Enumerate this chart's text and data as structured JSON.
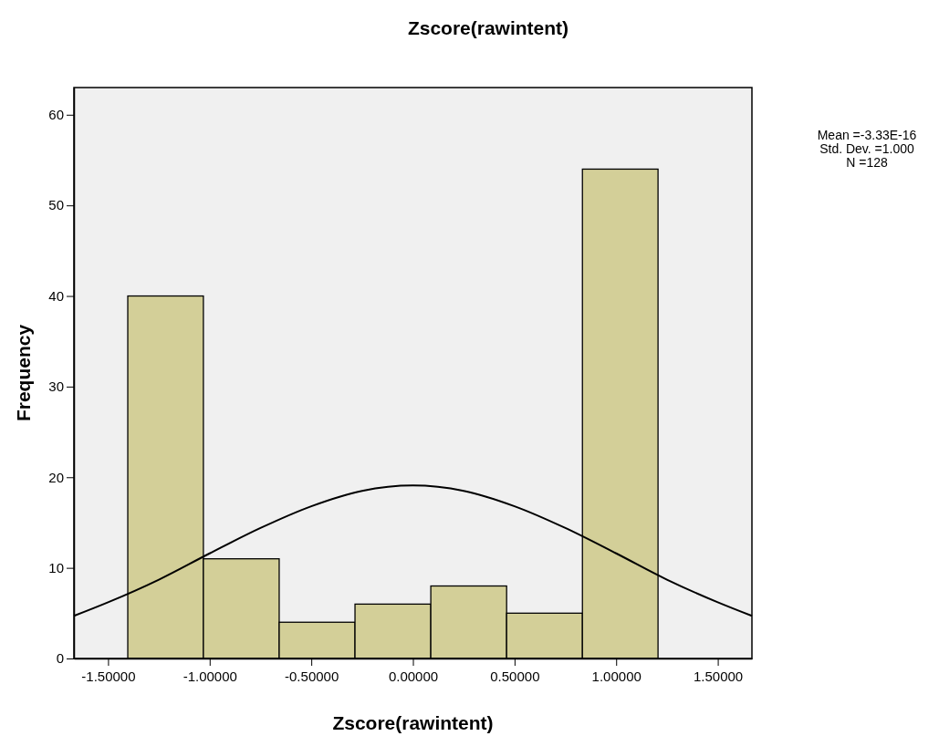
{
  "chart_data": {
    "type": "histogram",
    "title": "Zscore(rawintent)",
    "xlabel": "Zscore(rawintent)",
    "ylabel": "Frequency",
    "bins": [
      -1.403,
      -1.031,
      -0.658,
      -0.285,
      0.088,
      0.461,
      0.834,
      1.206
    ],
    "values": [
      40,
      11,
      4,
      6,
      8,
      5,
      54
    ],
    "color": "#d3cf98",
    "series": [
      {
        "type": "line",
        "color": "#000000",
        "x": [
          -1.668,
          -1.5,
          -1.25,
          -1.0,
          -0.75,
          -0.5,
          -0.25,
          0,
          0.25,
          0.5,
          0.75,
          1.0,
          1.25,
          1.5,
          1.668
        ],
        "values": [
          4.7,
          6.2,
          8.7,
          11.6,
          14.4,
          16.8,
          18.5,
          19.1,
          18.5,
          16.8,
          14.4,
          11.6,
          8.7,
          6.2,
          4.7
        ]
      }
    ],
    "xlim": [
      -1.668,
      1.668
    ],
    "xticks": [
      {
        "value": -1.5,
        "label": "-1.50000"
      },
      {
        "value": -1,
        "label": "-1.00000"
      },
      {
        "value": -0.5,
        "label": "-0.50000"
      },
      {
        "value": 0,
        "label": "0.00000"
      },
      {
        "value": 0.5,
        "label": "0.50000"
      },
      {
        "value": 1,
        "label": "1.00000"
      },
      {
        "value": 1.5,
        "label": "1.50000"
      }
    ],
    "ylim": [
      0,
      63
    ],
    "yticks": [
      0,
      10,
      20,
      30,
      40,
      50,
      60
    ],
    "grid": false,
    "annotations": [
      "Mean =-3.33E-16",
      "Std. Dev. =1.000",
      "N =128"
    ]
  }
}
